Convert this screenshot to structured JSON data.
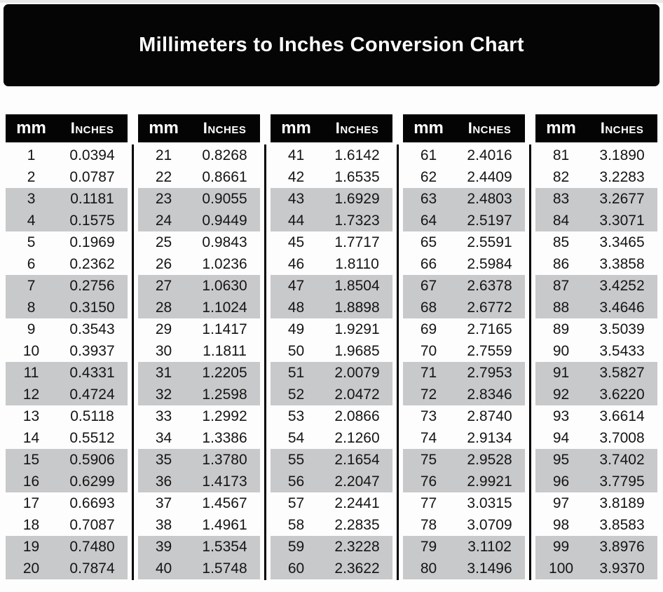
{
  "chart_data": {
    "type": "table",
    "title": "Millimeters to Inches Conversion Chart",
    "column_headers": [
      "mm",
      "Inches"
    ],
    "note_layout": "five side-by-side mm/Inches column pairs, rows shaded in alternating pairs",
    "groups": [
      {
        "rows": [
          [
            "1",
            "0.0394"
          ],
          [
            "2",
            "0.0787"
          ],
          [
            "3",
            "0.1181"
          ],
          [
            "4",
            "0.1575"
          ],
          [
            "5",
            "0.1969"
          ],
          [
            "6",
            "0.2362"
          ],
          [
            "7",
            "0.2756"
          ],
          [
            "8",
            "0.3150"
          ],
          [
            "9",
            "0.3543"
          ],
          [
            "10",
            "0.3937"
          ],
          [
            "11",
            "0.4331"
          ],
          [
            "12",
            "0.4724"
          ],
          [
            "13",
            "0.5118"
          ],
          [
            "14",
            "0.5512"
          ],
          [
            "15",
            "0.5906"
          ],
          [
            "16",
            "0.6299"
          ],
          [
            "17",
            "0.6693"
          ],
          [
            "18",
            "0.7087"
          ],
          [
            "19",
            "0.7480"
          ],
          [
            "20",
            "0.7874"
          ]
        ]
      },
      {
        "rows": [
          [
            "21",
            "0.8268"
          ],
          [
            "22",
            "0.8661"
          ],
          [
            "23",
            "0.9055"
          ],
          [
            "24",
            "0.9449"
          ],
          [
            "25",
            "0.9843"
          ],
          [
            "26",
            "1.0236"
          ],
          [
            "27",
            "1.0630"
          ],
          [
            "28",
            "1.1024"
          ],
          [
            "29",
            "1.1417"
          ],
          [
            "30",
            "1.1811"
          ],
          [
            "31",
            "1.2205"
          ],
          [
            "32",
            "1.2598"
          ],
          [
            "33",
            "1.2992"
          ],
          [
            "34",
            "1.3386"
          ],
          [
            "35",
            "1.3780"
          ],
          [
            "36",
            "1.4173"
          ],
          [
            "37",
            "1.4567"
          ],
          [
            "38",
            "1.4961"
          ],
          [
            "39",
            "1.5354"
          ],
          [
            "40",
            "1.5748"
          ]
        ]
      },
      {
        "rows": [
          [
            "41",
            "1.6142"
          ],
          [
            "42",
            "1.6535"
          ],
          [
            "43",
            "1.6929"
          ],
          [
            "44",
            "1.7323"
          ],
          [
            "45",
            "1.7717"
          ],
          [
            "46",
            "1.8110"
          ],
          [
            "47",
            "1.8504"
          ],
          [
            "48",
            "1.8898"
          ],
          [
            "49",
            "1.9291"
          ],
          [
            "50",
            "1.9685"
          ],
          [
            "51",
            "2.0079"
          ],
          [
            "52",
            "2.0472"
          ],
          [
            "53",
            "2.0866"
          ],
          [
            "54",
            "2.1260"
          ],
          [
            "55",
            "2.1654"
          ],
          [
            "56",
            "2.2047"
          ],
          [
            "57",
            "2.2441"
          ],
          [
            "58",
            "2.2835"
          ],
          [
            "59",
            "2.3228"
          ],
          [
            "60",
            "2.3622"
          ]
        ]
      },
      {
        "rows": [
          [
            "61",
            "2.4016"
          ],
          [
            "62",
            "2.4409"
          ],
          [
            "63",
            "2.4803"
          ],
          [
            "64",
            "2.5197"
          ],
          [
            "65",
            "2.5591"
          ],
          [
            "66",
            "2.5984"
          ],
          [
            "67",
            "2.6378"
          ],
          [
            "68",
            "2.6772"
          ],
          [
            "69",
            "2.7165"
          ],
          [
            "70",
            "2.7559"
          ],
          [
            "71",
            "2.7953"
          ],
          [
            "72",
            "2.8346"
          ],
          [
            "73",
            "2.8740"
          ],
          [
            "74",
            "2.9134"
          ],
          [
            "75",
            "2.9528"
          ],
          [
            "76",
            "2.9921"
          ],
          [
            "77",
            "3.0315"
          ],
          [
            "78",
            "3.0709"
          ],
          [
            "79",
            "3.1102"
          ],
          [
            "80",
            "3.1496"
          ]
        ]
      },
      {
        "rows": [
          [
            "81",
            "3.1890"
          ],
          [
            "82",
            "3.2283"
          ],
          [
            "83",
            "3.2677"
          ],
          [
            "84",
            "3.3071"
          ],
          [
            "85",
            "3.3465"
          ],
          [
            "86",
            "3.3858"
          ],
          [
            "87",
            "3.4252"
          ],
          [
            "88",
            "3.4646"
          ],
          [
            "89",
            "3.5039"
          ],
          [
            "90",
            "3.5433"
          ],
          [
            "91",
            "3.5827"
          ],
          [
            "92",
            "3.6220"
          ],
          [
            "93",
            "3.6614"
          ],
          [
            "94",
            "3.7008"
          ],
          [
            "95",
            "3.7402"
          ],
          [
            "96",
            "3.7795"
          ],
          [
            "97",
            "3.8189"
          ],
          [
            "98",
            "3.8583"
          ],
          [
            "99",
            "3.8976"
          ],
          [
            "100",
            "3.9370"
          ]
        ]
      }
    ]
  },
  "colors": {
    "banner_bg": "#050505",
    "header_bg": "#040404",
    "row_shade": "#c8c9ca",
    "text": "#151515",
    "page_bg": "#fdfdfd"
  }
}
